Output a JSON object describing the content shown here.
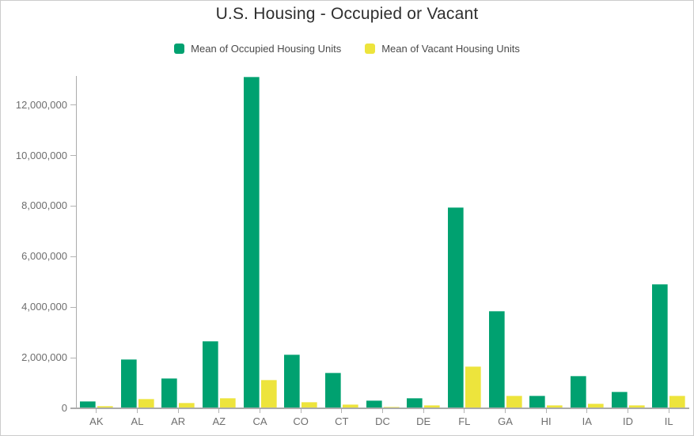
{
  "chart_data": {
    "type": "bar",
    "title": "U.S. Housing - Occupied or Vacant",
    "xlabel": "",
    "ylabel": "",
    "categories": [
      "AK",
      "AL",
      "AR",
      "AZ",
      "CA",
      "CO",
      "CT",
      "DC",
      "DE",
      "FL",
      "GA",
      "HI",
      "IA",
      "ID",
      "IL"
    ],
    "series": [
      {
        "name": "Mean of Occupied Housing Units",
        "color": "#00a170",
        "values": [
          255000,
          1900000,
          1150000,
          2640000,
          13100000,
          2110000,
          1380000,
          285000,
          365000,
          7930000,
          3830000,
          460000,
          1260000,
          635000,
          4880000
        ]
      },
      {
        "name": "Mean of Vacant Housing Units",
        "color": "#ede43c",
        "values": [
          75000,
          350000,
          190000,
          385000,
          1100000,
          210000,
          130000,
          40000,
          95000,
          1620000,
          470000,
          80000,
          150000,
          100000,
          470000
        ]
      }
    ],
    "ylim": [
      0,
      13150000
    ],
    "y_ticks": [
      {
        "value": 0,
        "label": "0"
      },
      {
        "value": 2000000,
        "label": "2,000,000"
      },
      {
        "value": 4000000,
        "label": "4,000,000"
      },
      {
        "value": 6000000,
        "label": "6,000,000"
      },
      {
        "value": 8000000,
        "label": "8,000,000"
      },
      {
        "value": 10000000,
        "label": "10,000,000"
      },
      {
        "value": 12000000,
        "label": "12,000,000"
      }
    ],
    "grid": false,
    "legend_position": "top",
    "colors": {
      "axis_line": "#ababab",
      "axis_text": "#6e6e6e",
      "legend_text": "#4a4a4a",
      "title_text": "#2f2f2f",
      "border": "#cccccc",
      "background": "#ffffff"
    }
  }
}
